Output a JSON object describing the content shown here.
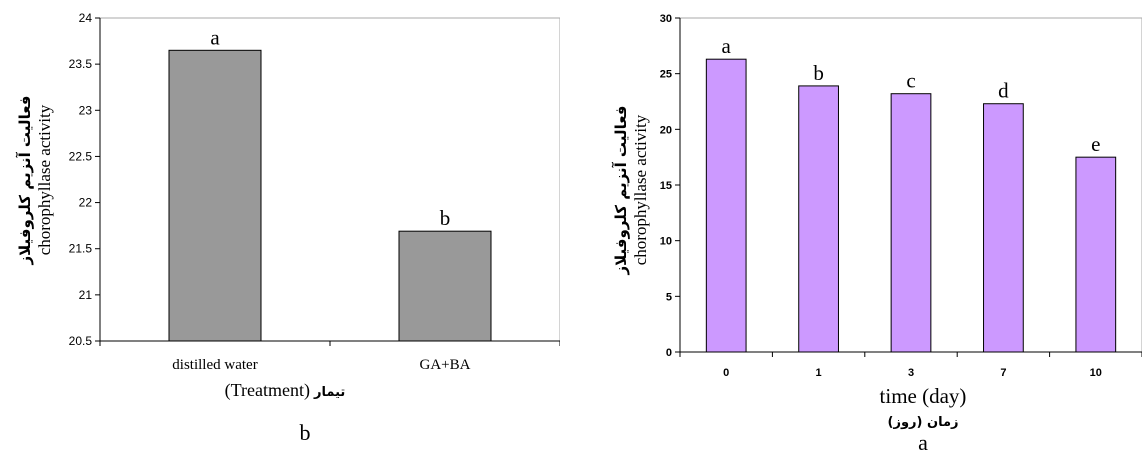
{
  "chart_data": [
    {
      "type": "bar",
      "panel_label": "b",
      "categories": [
        "distilled water",
        "GA+BA"
      ],
      "values": [
        23.65,
        21.69
      ],
      "bar_labels": [
        "a",
        "b"
      ],
      "bar_color": "#999999",
      "ylim": [
        20.5,
        24
      ],
      "yticks": [
        "20.5",
        "21",
        "21.5",
        "22",
        "22.5",
        "23",
        "23.5",
        "24"
      ],
      "ylabel_fa": "فعالیت آنزیم کلروفیلاز",
      "ylabel_en": "chorophyllase activity",
      "xlabel_en": "(Treatment)",
      "xlabel_fa": "تیمار",
      "grid": false
    },
    {
      "type": "bar",
      "panel_label": "a",
      "categories": [
        "0",
        "1",
        "3",
        "7",
        "10"
      ],
      "values": [
        26.3,
        23.9,
        23.2,
        22.3,
        17.5
      ],
      "bar_labels": [
        "a",
        "b",
        "c",
        "d",
        "e"
      ],
      "bar_color": "#cc99ff",
      "ylim": [
        0,
        30
      ],
      "yticks": [
        "0",
        "5",
        "10",
        "15",
        "20",
        "25",
        "30"
      ],
      "ylabel_fa": "فعالیت آنزیم کلروفیلاز",
      "ylabel_en": "chorophyllase activity",
      "xlabel_en": "time (day)",
      "xlabel_fa": "زمان (روز)",
      "grid": false
    }
  ]
}
